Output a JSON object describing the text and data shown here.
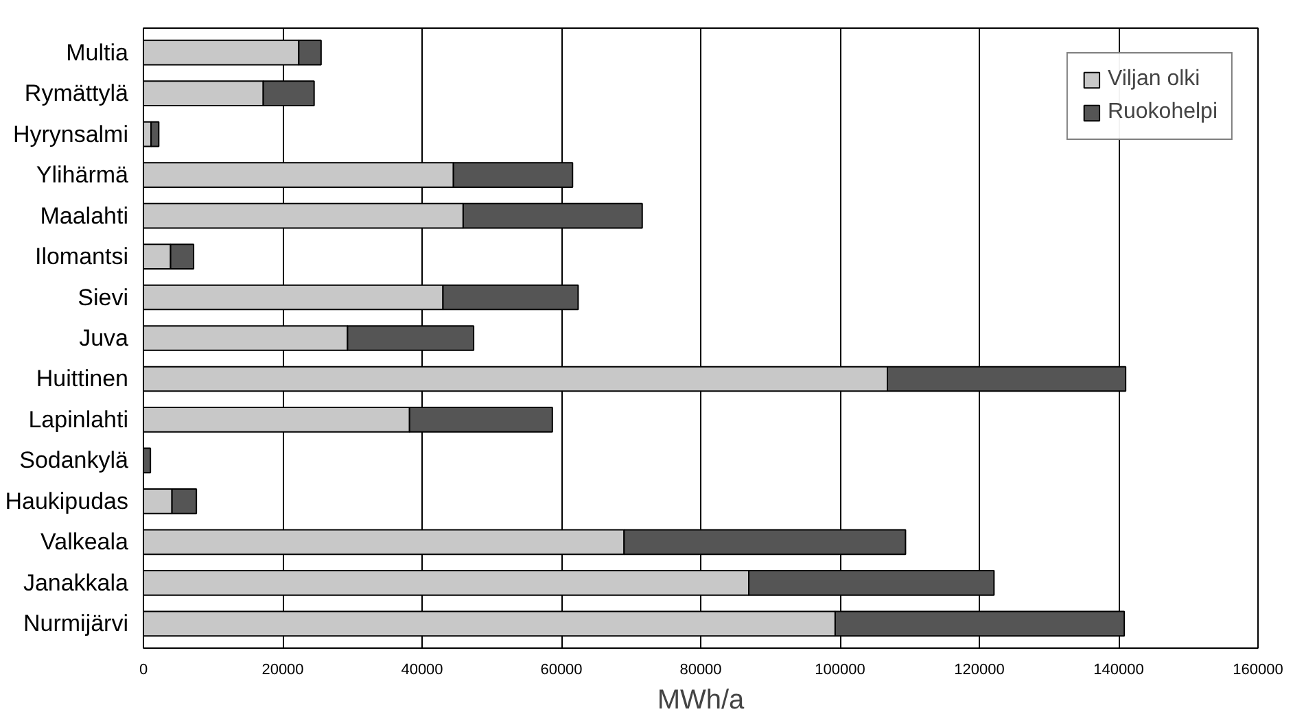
{
  "chart_data": {
    "type": "bar",
    "orientation": "horizontal",
    "stacked": true,
    "xlabel": "MWh/a",
    "categories": [
      "Multia",
      "Rymättylä",
      "Hyrynsalmi",
      "Ylihärmä",
      "Maalahti",
      "Ilomantsi",
      "Sievi",
      "Juva",
      "Huittinen",
      "Lapinlahti",
      "Sodankylä",
      "Haukipudas",
      "Valkeala",
      "Janakkala",
      "Nurmijärvi"
    ],
    "series": [
      {
        "name": "Viljan olki",
        "color": "#c8c8c8",
        "values": [
          22300,
          17200,
          1100,
          44500,
          45900,
          3900,
          43000,
          29300,
          106800,
          38200,
          null,
          4100,
          69000,
          86900,
          99300
        ]
      },
      {
        "name": "Ruokohelpi",
        "color": "#555555",
        "values": [
          3200,
          7300,
          1100,
          17100,
          25700,
          3300,
          19400,
          18100,
          34200,
          20500,
          1000,
          3500,
          40400,
          35200,
          41500
        ]
      }
    ],
    "xlim": [
      0,
      160000
    ],
    "xticks": [
      0,
      20000,
      40000,
      60000,
      80000,
      100000,
      120000,
      140000,
      160000
    ],
    "grid": "x",
    "legend": "top right"
  }
}
